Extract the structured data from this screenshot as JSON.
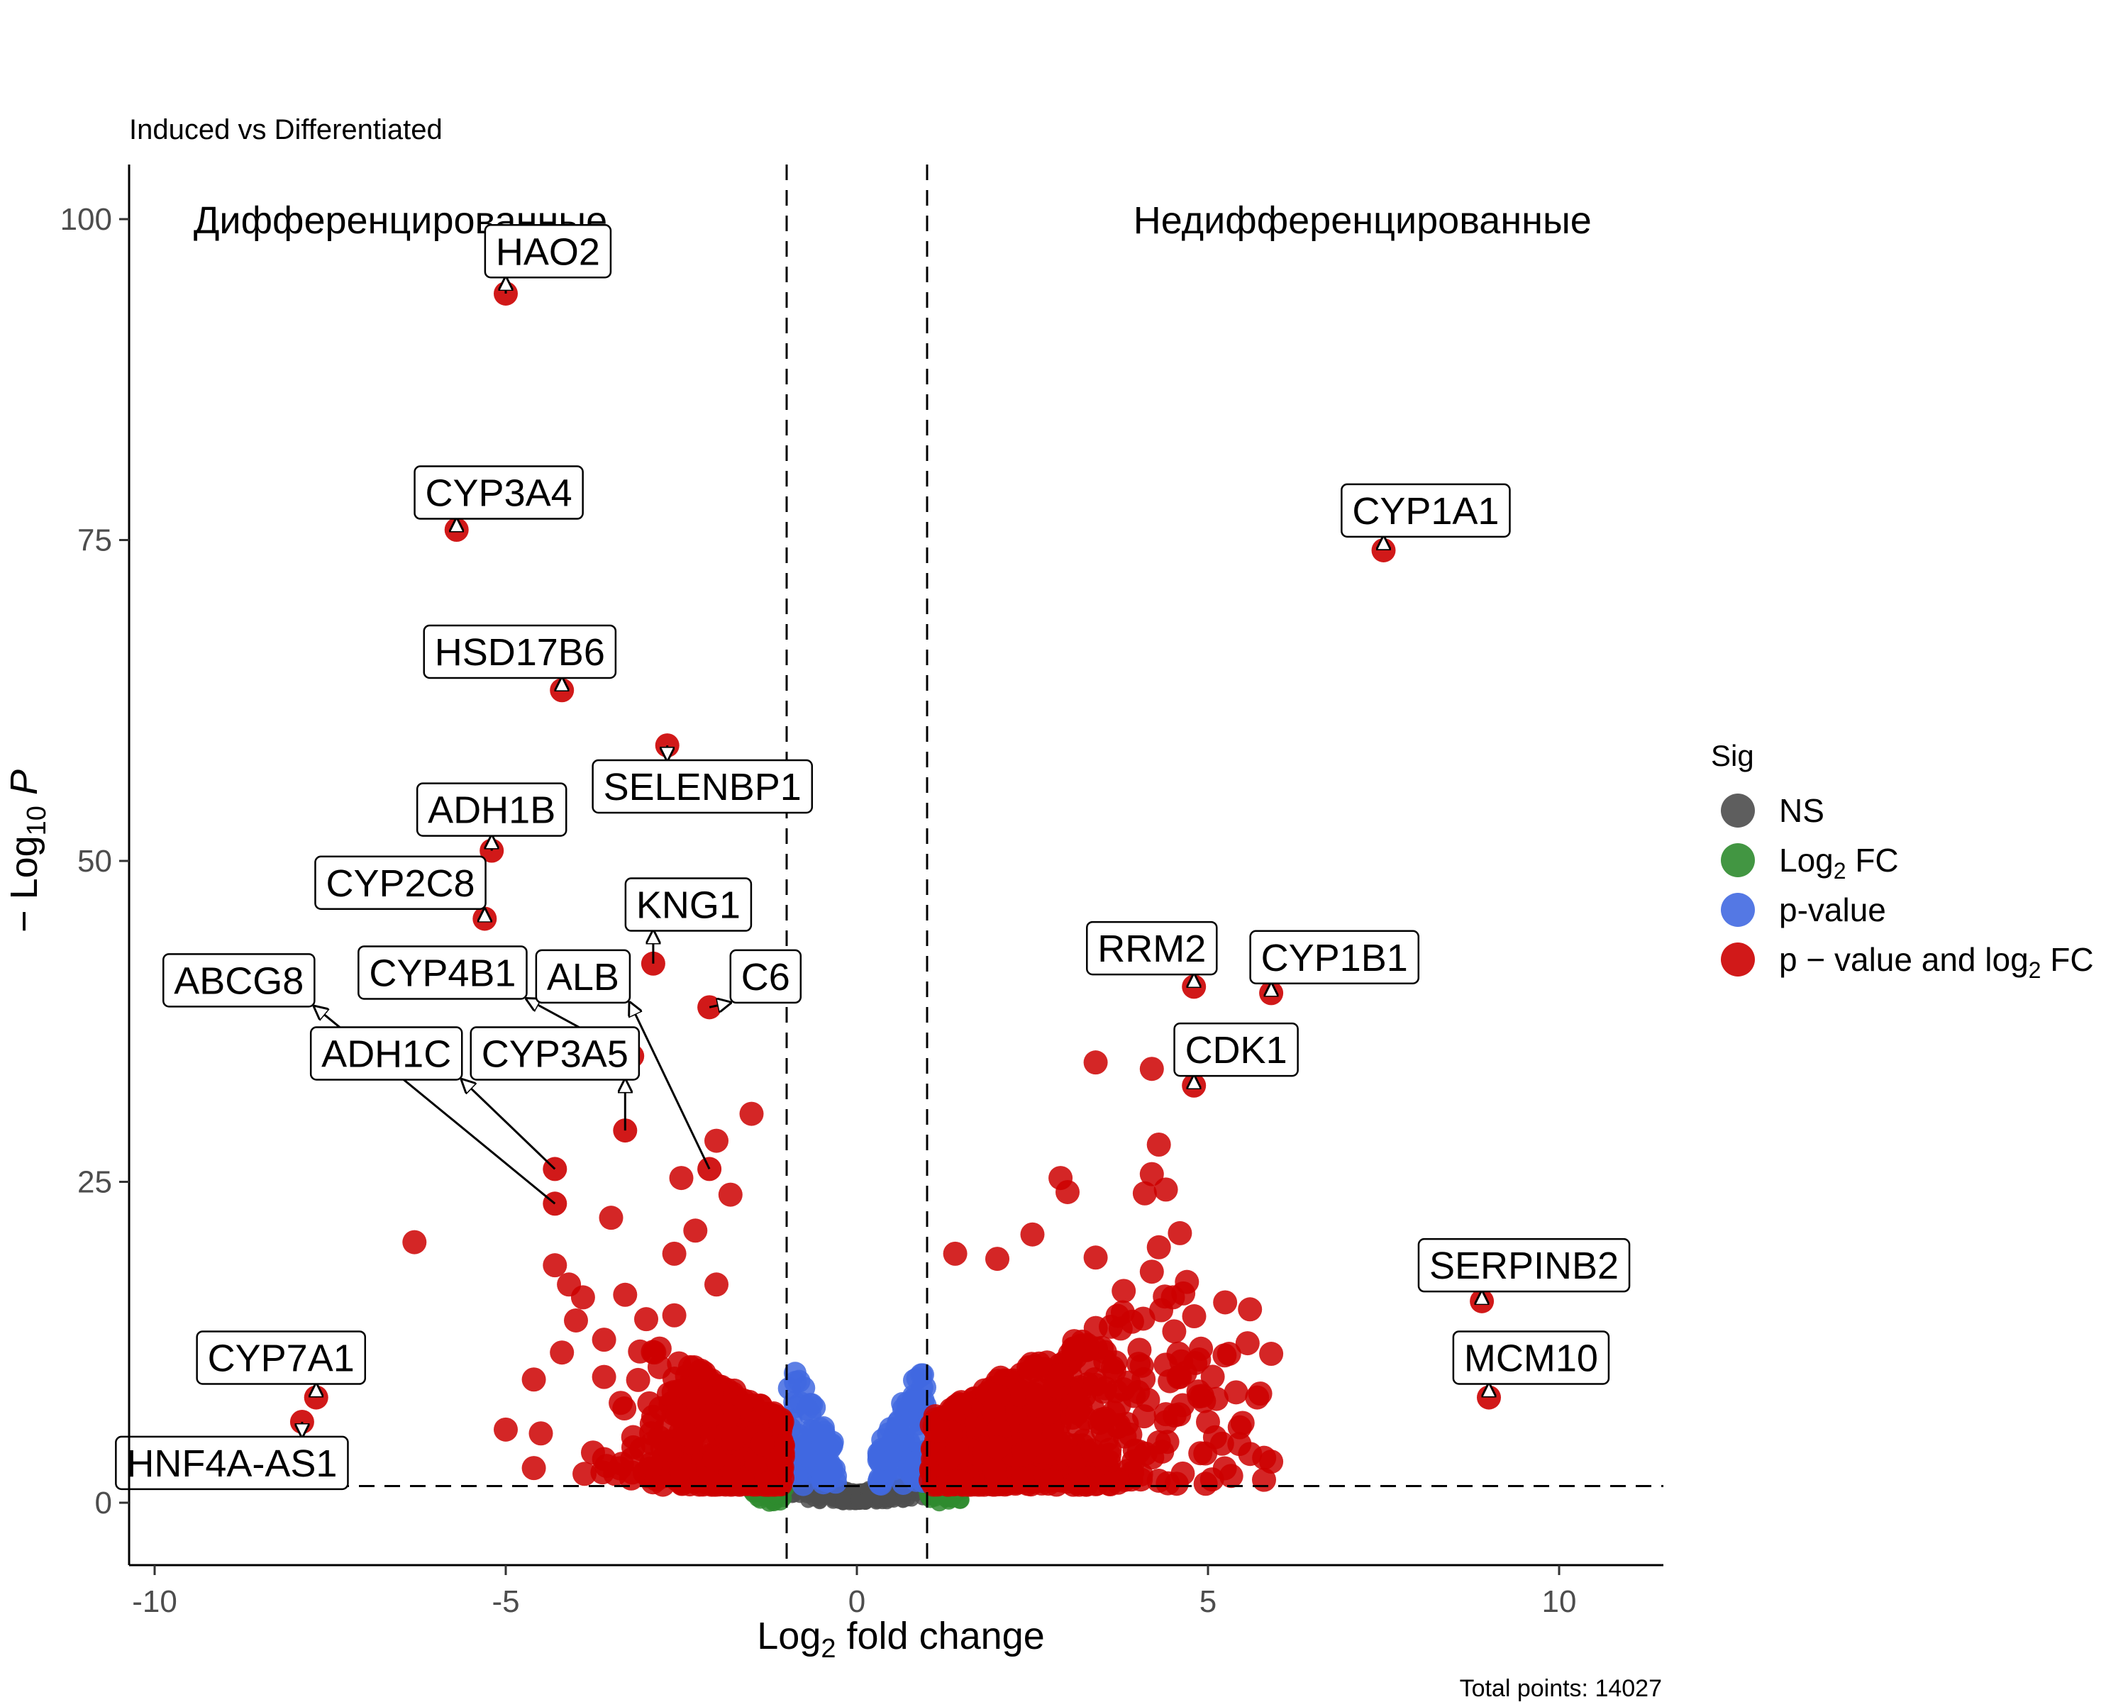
{
  "chart_data": {
    "type": "scatter",
    "subtitle": "Induced vs Differentiated",
    "xlabel": "Log2 fold change",
    "ylabel": "− Log10 P",
    "xlim": [
      -10.5,
      11.5
    ],
    "ylim": [
      -5,
      105
    ],
    "x_ticks": [
      -10,
      -5,
      0,
      5,
      10
    ],
    "x_tick_labels": [
      "-10",
      "-5",
      "0",
      "5",
      "10"
    ],
    "y_ticks": [
      0,
      25,
      50,
      75,
      100
    ],
    "y_tick_labels": [
      "0",
      "25",
      "50",
      "75",
      "100"
    ],
    "fc_cutoff": 1,
    "p_cutoff_line": 1.3,
    "grid": false,
    "region_labels": [
      {
        "text": "Дифференцированные",
        "x": -6.5,
        "y": 100
      },
      {
        "text": "Недифференцированные",
        "x": 7.2,
        "y": 100
      }
    ],
    "legend": {
      "title": "Sig",
      "position": "right",
      "entries": [
        {
          "label": "NS",
          "color": "#4d4d4d"
        },
        {
          "label_main": "Log",
          "label_sub": "2",
          "label_tail": " FC",
          "color": "#2e8b2e"
        },
        {
          "label": "p-value",
          "color": "#4169e1"
        },
        {
          "label_main": "p − value and log",
          "label_sub": "2",
          "label_tail": " FC",
          "color": "#cc0000"
        }
      ]
    },
    "labeled_points": [
      {
        "gene": "HAO2",
        "x": -5.0,
        "y": 94.2,
        "lx": -4.4,
        "ly": 97.5
      },
      {
        "gene": "CYP3A4",
        "x": -5.7,
        "y": 75.8,
        "lx": -5.1,
        "ly": 78.7
      },
      {
        "gene": "HSD17B6",
        "x": -4.2,
        "y": 63.3,
        "lx": -4.8,
        "ly": 66.3
      },
      {
        "gene": "SELENBP1",
        "x": -2.7,
        "y": 59.0,
        "lx": -2.2,
        "ly": 55.8
      },
      {
        "gene": "ADH1B",
        "x": -5.2,
        "y": 50.8,
        "lx": -5.2,
        "ly": 54.0
      },
      {
        "gene": "CYP2C8",
        "x": -5.3,
        "y": 45.5,
        "lx": -6.5,
        "ly": 48.3
      },
      {
        "gene": "KNG1",
        "x": -2.9,
        "y": 42.0,
        "lx": -2.4,
        "ly": 46.6
      },
      {
        "gene": "C6",
        "x": -2.1,
        "y": 38.6,
        "lx": -1.3,
        "ly": 41.0
      },
      {
        "gene": "ABCG8",
        "x": -4.3,
        "y": 23.3,
        "lx": -8.8,
        "ly": 40.7
      },
      {
        "gene": "CYP4B1",
        "x": -3.2,
        "y": 34.8,
        "lx": -5.9,
        "ly": 41.3
      },
      {
        "gene": "ALB",
        "x": -2.1,
        "y": 26.0,
        "lx": -3.9,
        "ly": 41.0
      },
      {
        "gene": "ADH1C",
        "x": -4.3,
        "y": 26.0,
        "lx": -6.7,
        "ly": 35.0
      },
      {
        "gene": "CYP3A5",
        "x": -3.3,
        "y": 29.0,
        "lx": -4.3,
        "ly": 35.0
      },
      {
        "gene": "CYP7A1",
        "x": -7.7,
        "y": 8.2,
        "lx": -8.2,
        "ly": 11.3
      },
      {
        "gene": "HNF4A-AS1",
        "x": -7.9,
        "y": 6.3,
        "lx": -8.9,
        "ly": 3.1
      },
      {
        "gene": "CYP1A1",
        "x": 7.5,
        "y": 74.2,
        "lx": 8.1,
        "ly": 77.3
      },
      {
        "gene": "RRM2",
        "x": 4.8,
        "y": 40.2,
        "lx": 4.2,
        "ly": 43.2
      },
      {
        "gene": "CYP1B1",
        "x": 5.9,
        "y": 39.7,
        "lx": 6.8,
        "ly": 42.5
      },
      {
        "gene": "CDK1",
        "x": 4.8,
        "y": 32.5,
        "lx": 5.4,
        "ly": 35.3
      },
      {
        "gene": "SERPINB2",
        "x": 8.9,
        "y": 15.7,
        "lx": 9.5,
        "ly": 18.5
      },
      {
        "gene": "MCM10",
        "x": 9.0,
        "y": 8.2,
        "lx": 9.6,
        "ly": 11.3
      }
    ],
    "series": [
      {
        "name": "NS",
        "color": "#4d4d4d",
        "description_points": "dense cloud near origin"
      },
      {
        "name": "Log2 FC",
        "color": "#2e8b2e"
      },
      {
        "name": "p-value",
        "color": "#4169e1"
      },
      {
        "name": "p − value and log2 FC",
        "color": "#cc0000"
      }
    ],
    "caption": "Total points: 14027"
  }
}
